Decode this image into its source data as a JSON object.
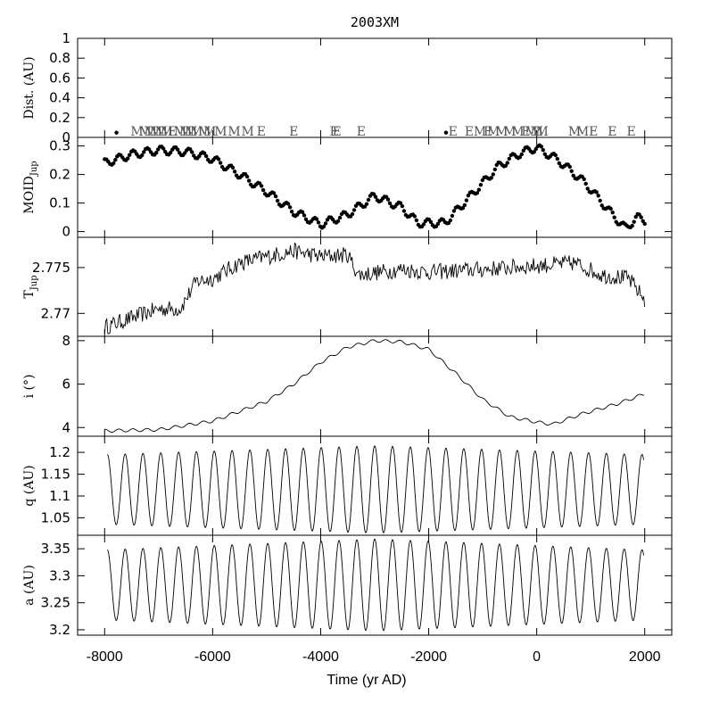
{
  "chart_data": {
    "type": "line",
    "title": "2003XM",
    "xlabel": "Time (yr AD)",
    "xlim": [
      -8500,
      2500
    ],
    "x_ticks": [
      "-8000",
      "-6000",
      "-4000",
      "-2000",
      "0",
      "2000"
    ],
    "panels": [
      {
        "id": "dist",
        "ylabel": "Dist. (AU)",
        "ylim": [
          0,
          1
        ],
        "y_ticks": [
          "0",
          "0.2",
          "0.4",
          "0.6",
          "0.8",
          "1"
        ],
        "encounters": [
          {
            "x": -7400,
            "label": "M"
          },
          {
            "x": -7250,
            "label": "M"
          },
          {
            "x": -7150,
            "label": "M"
          },
          {
            "x": -7050,
            "label": "M"
          },
          {
            "x": -6950,
            "label": "M"
          },
          {
            "x": -6850,
            "label": "M"
          },
          {
            "x": -6750,
            "label": "E"
          },
          {
            "x": -6600,
            "label": "M"
          },
          {
            "x": -6500,
            "label": "M"
          },
          {
            "x": -6400,
            "label": "M"
          },
          {
            "x": -6300,
            "label": "M"
          },
          {
            "x": -6150,
            "label": "M"
          },
          {
            "x": -6050,
            "label": "M"
          },
          {
            "x": -5850,
            "label": "M"
          },
          {
            "x": -5600,
            "label": "M"
          },
          {
            "x": -5350,
            "label": "M"
          },
          {
            "x": -5100,
            "label": "E"
          },
          {
            "x": -4500,
            "label": "E"
          },
          {
            "x": -3750,
            "label": "E"
          },
          {
            "x": -3700,
            "label": "E"
          },
          {
            "x": -3250,
            "label": "E"
          },
          {
            "x": -1550,
            "label": "E"
          },
          {
            "x": -1250,
            "label": "E"
          },
          {
            "x": -1050,
            "label": "M"
          },
          {
            "x": -900,
            "label": "E"
          },
          {
            "x": -800,
            "label": "M"
          },
          {
            "x": -650,
            "label": "M"
          },
          {
            "x": -500,
            "label": "M"
          },
          {
            "x": -350,
            "label": "M"
          },
          {
            "x": -200,
            "label": "E"
          },
          {
            "x": -100,
            "label": "M"
          },
          {
            "x": 0,
            "label": "M"
          },
          {
            "x": 100,
            "label": "M"
          },
          {
            "x": 700,
            "label": "M"
          },
          {
            "x": 850,
            "label": "M"
          },
          {
            "x": 1050,
            "label": "E"
          },
          {
            "x": 1400,
            "label": "E"
          },
          {
            "x": 1750,
            "label": "E"
          }
        ],
        "near_dots": [
          {
            "x": -7780,
            "y": 0.03
          },
          {
            "x": -1680,
            "y": 0.03
          }
        ]
      },
      {
        "id": "moid",
        "ylabel": "MOID",
        "ylabel_sub": "Jup",
        "ylim": [
          -0.02,
          0.33
        ],
        "y_ticks": [
          "0",
          "0.1",
          "0.2",
          "0.3"
        ],
        "style": "dots",
        "trend": [
          [
            -8000,
            0.24
          ],
          [
            -7500,
            0.27
          ],
          [
            -7000,
            0.285
          ],
          [
            -6500,
            0.28
          ],
          [
            -6000,
            0.255
          ],
          [
            -5500,
            0.2
          ],
          [
            -5000,
            0.14
          ],
          [
            -4500,
            0.07
          ],
          [
            -4000,
            0.025
          ],
          [
            -3500,
            0.06
          ],
          [
            -3000,
            0.125
          ],
          [
            -2500,
            0.085
          ],
          [
            -2200,
            0.03
          ],
          [
            -1700,
            0.03
          ],
          [
            -1200,
            0.13
          ],
          [
            -700,
            0.23
          ],
          [
            -300,
            0.275
          ],
          [
            0,
            0.295
          ],
          [
            400,
            0.25
          ],
          [
            900,
            0.17
          ],
          [
            1400,
            0.06
          ],
          [
            1650,
            0.01
          ],
          [
            1850,
            0.05
          ],
          [
            2000,
            0.04
          ]
        ],
        "wiggle_amplitude": 0.014,
        "wiggle_period": 260
      },
      {
        "id": "tjup",
        "ylabel": "T",
        "ylabel_sub": "Jup",
        "ylim": [
          2.7675,
          2.7783
        ],
        "y_ticks": [
          "2.77",
          "2.775"
        ],
        "style": "noisy-line",
        "trend": [
          [
            -8000,
            2.7685
          ],
          [
            -7500,
            2.7695
          ],
          [
            -7000,
            2.7705
          ],
          [
            -6600,
            2.7705
          ],
          [
            -6300,
            2.7735
          ],
          [
            -6000,
            2.7738
          ],
          [
            -5500,
            2.7755
          ],
          [
            -5000,
            2.7762
          ],
          [
            -4500,
            2.7768
          ],
          [
            -4000,
            2.7762
          ],
          [
            -3500,
            2.7764
          ],
          [
            -3300,
            2.7742
          ],
          [
            -2500,
            2.7748
          ],
          [
            -2000,
            2.7745
          ],
          [
            -1000,
            2.7748
          ],
          [
            0,
            2.7752
          ],
          [
            700,
            2.7755
          ],
          [
            1200,
            2.7742
          ],
          [
            1700,
            2.7738
          ],
          [
            2000,
            2.7715
          ]
        ],
        "noise_amplitude": 0.0009
      },
      {
        "id": "incl",
        "ylabel": "i (°)",
        "ylim": [
          3.6,
          8.2
        ],
        "y_ticks": [
          "4",
          "6",
          "8"
        ],
        "style": "line",
        "trend": [
          [
            -8000,
            3.85
          ],
          [
            -7000,
            3.9
          ],
          [
            -6000,
            4.3
          ],
          [
            -5000,
            5.2
          ],
          [
            -4500,
            6.0
          ],
          [
            -4000,
            7.0
          ],
          [
            -3500,
            7.7
          ],
          [
            -3000,
            8.0
          ],
          [
            -2500,
            7.95
          ],
          [
            -2000,
            7.6
          ],
          [
            -1500,
            6.5
          ],
          [
            -1000,
            5.3
          ],
          [
            -500,
            4.5
          ],
          [
            0,
            4.25
          ],
          [
            300,
            4.15
          ],
          [
            800,
            4.6
          ],
          [
            1500,
            5.1
          ],
          [
            2000,
            5.55
          ]
        ],
        "wiggle_amplitude": 0.07,
        "wiggle_period": 260
      },
      {
        "id": "q",
        "ylabel": "q (AU)",
        "ylim": [
          1.01,
          1.237
        ],
        "y_ticks": [
          "1.05",
          "1.1",
          "1.15",
          "1.2"
        ],
        "style": "oscillation",
        "period": 330,
        "mid": 1.115,
        "amp_start": 0.08,
        "amp_mid": 0.1,
        "amp_end": 0.08,
        "x_start": -7950,
        "x_end": 1980
      },
      {
        "id": "a",
        "ylabel": "a (AU)",
        "ylim": [
          3.19,
          3.375
        ],
        "y_ticks": [
          "3.2",
          "3.25",
          "3.3",
          "3.35"
        ],
        "style": "oscillation",
        "period": 330,
        "mid": 3.283,
        "amp_start": 0.065,
        "amp_mid": 0.085,
        "amp_end": 0.065,
        "x_start": -7950,
        "x_end": 1980
      }
    ]
  }
}
